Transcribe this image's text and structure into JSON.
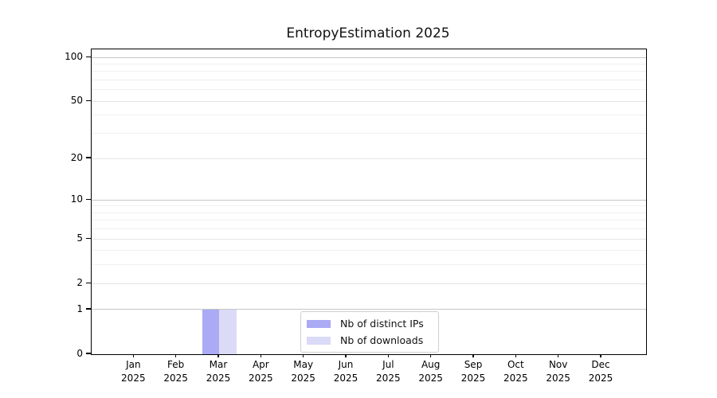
{
  "chart_data": {
    "type": "bar",
    "title": "EntropyEstimation 2025",
    "x": {
      "categories": [
        {
          "month": "Jan",
          "year": "2025"
        },
        {
          "month": "Feb",
          "year": "2025"
        },
        {
          "month": "Mar",
          "year": "2025"
        },
        {
          "month": "Apr",
          "year": "2025"
        },
        {
          "month": "May",
          "year": "2025"
        },
        {
          "month": "Jun",
          "year": "2025"
        },
        {
          "month": "Jul",
          "year": "2025"
        },
        {
          "month": "Aug",
          "year": "2025"
        },
        {
          "month": "Sep",
          "year": "2025"
        },
        {
          "month": "Oct",
          "year": "2025"
        },
        {
          "month": "Nov",
          "year": "2025"
        },
        {
          "month": "Dec",
          "year": "2025"
        }
      ]
    },
    "series": [
      {
        "name": "Nb of distinct IPs",
        "color": "#aaaaf5",
        "values": [
          0,
          0,
          1,
          0,
          0,
          0,
          0,
          0,
          0,
          0,
          0,
          0
        ]
      },
      {
        "name": "Nb of downloads",
        "color": "#dbdbf7",
        "values": [
          0,
          0,
          1,
          0,
          0,
          0,
          0,
          0,
          0,
          0,
          0,
          0
        ]
      }
    ],
    "y_axis": {
      "scale": "log1p",
      "lim": [
        0,
        113.5
      ],
      "major_ticks": [
        100,
        50,
        20,
        10,
        5,
        2,
        1,
        0
      ],
      "decade_ticks": [
        1,
        10,
        100
      ],
      "minor_ticks": [
        3,
        4,
        6,
        7,
        8,
        9,
        30,
        40,
        60,
        70,
        80,
        90
      ]
    },
    "grid": "both",
    "legend": {
      "position": "lower center",
      "entries": [
        "Nb of distinct IPs",
        "Nb of downloads"
      ]
    },
    "colors": {
      "spine": "#000000",
      "grid_major": "#c6c6c6",
      "grid_mid": "#e4e4e4",
      "grid_minor": "#f0f0f0",
      "text": "#000000",
      "legend_border": "#cfcfcf"
    }
  }
}
